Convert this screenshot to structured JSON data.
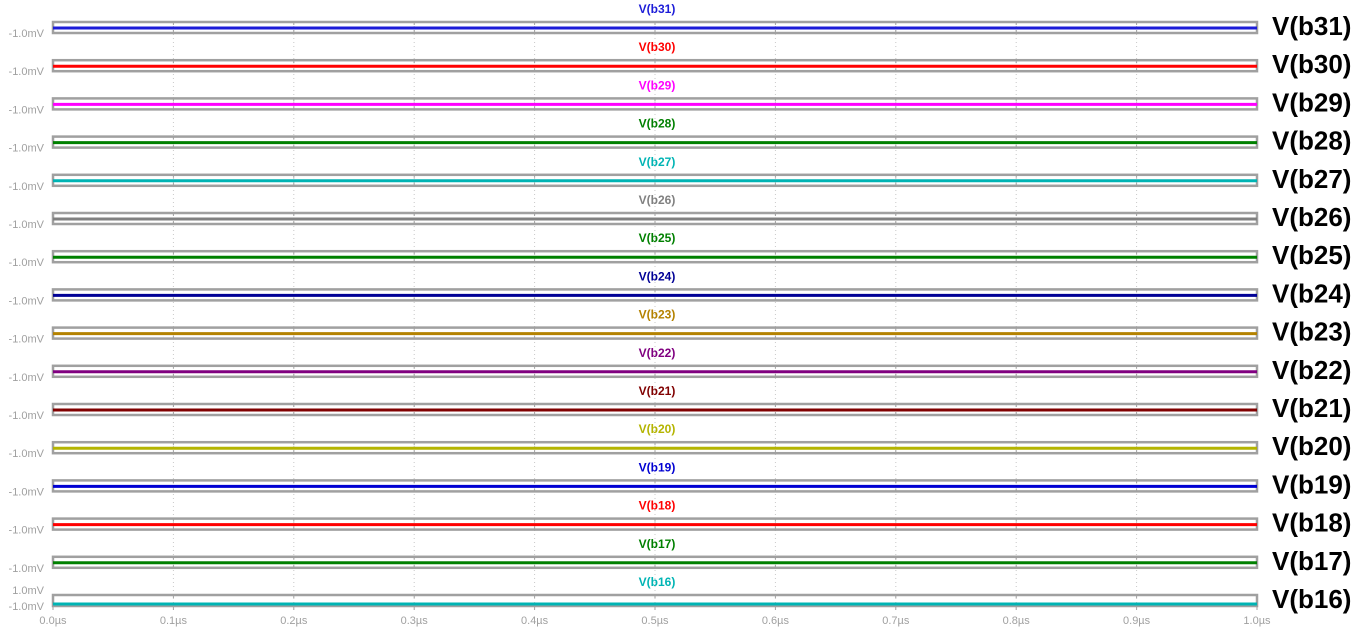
{
  "chart_data": {
    "type": "line",
    "x_unit": "µs",
    "x": [
      0.0,
      1.0
    ],
    "x_ticks": [
      0.0,
      0.1,
      0.2,
      0.3,
      0.4,
      0.5,
      0.6,
      0.7,
      0.8,
      0.9,
      1.0
    ],
    "x_tick_labels": [
      "0.0µs",
      "0.1µs",
      "0.2µs",
      "0.3µs",
      "0.4µs",
      "0.5µs",
      "0.6µs",
      "0.7µs",
      "0.8µs",
      "0.9µs",
      "1.0µs"
    ],
    "xlim": [
      0.0,
      1.0
    ],
    "grid": "vertical-dotted",
    "panels": [
      {
        "name": "V(b31)",
        "label": "V(b31)",
        "color": "#1c1cd8",
        "values_mV": [
          -1.0,
          -1.0
        ],
        "y_tick_labels": [
          "-1.0mV"
        ]
      },
      {
        "name": "V(b30)",
        "label": "V(b30)",
        "color": "#ff0000",
        "values_mV": [
          -1.0,
          -1.0
        ],
        "y_tick_labels": [
          "-1.0mV"
        ]
      },
      {
        "name": "V(b29)",
        "label": "V(b29)",
        "color": "#ff00ff",
        "values_mV": [
          -1.0,
          -1.0
        ],
        "y_tick_labels": [
          "-1.0mV"
        ]
      },
      {
        "name": "V(b28)",
        "label": "V(b28)",
        "color": "#008000",
        "values_mV": [
          -1.0,
          -1.0
        ],
        "y_tick_labels": [
          "-1.0mV"
        ]
      },
      {
        "name": "V(b27)",
        "label": "V(b27)",
        "color": "#00b4b4",
        "values_mV": [
          -1.0,
          -1.0
        ],
        "y_tick_labels": [
          "-1.0mV"
        ]
      },
      {
        "name": "V(b26)",
        "label": "V(b26)",
        "color": "#808080",
        "values_mV": [
          -1.0,
          -1.0
        ],
        "y_tick_labels": [
          "-1.0mV"
        ]
      },
      {
        "name": "V(b25)",
        "label": "V(b25)",
        "color": "#008000",
        "values_mV": [
          -1.0,
          -1.0
        ],
        "y_tick_labels": [
          "-1.0mV"
        ]
      },
      {
        "name": "V(b24)",
        "label": "V(b24)",
        "color": "#000096",
        "values_mV": [
          -1.0,
          -1.0
        ],
        "y_tick_labels": [
          "-1.0mV"
        ]
      },
      {
        "name": "V(b23)",
        "label": "V(b23)",
        "color": "#b48200",
        "values_mV": [
          -1.0,
          -1.0
        ],
        "y_tick_labels": [
          "-1.0mV"
        ]
      },
      {
        "name": "V(b22)",
        "label": "V(b22)",
        "color": "#800080",
        "values_mV": [
          -1.0,
          -1.0
        ],
        "y_tick_labels": [
          "-1.0mV"
        ]
      },
      {
        "name": "V(b21)",
        "label": "V(b21)",
        "color": "#800000",
        "values_mV": [
          -1.0,
          -1.0
        ],
        "y_tick_labels": [
          "-1.0mV"
        ]
      },
      {
        "name": "V(b20)",
        "label": "V(b20)",
        "color": "#b4b400",
        "values_mV": [
          -1.0,
          -1.0
        ],
        "y_tick_labels": [
          "-1.0mV"
        ]
      },
      {
        "name": "V(b19)",
        "label": "V(b19)",
        "color": "#0000d2",
        "values_mV": [
          -1.0,
          -1.0
        ],
        "y_tick_labels": [
          "-1.0mV"
        ]
      },
      {
        "name": "V(b18)",
        "label": "V(b18)",
        "color": "#ff0000",
        "values_mV": [
          -1.0,
          -1.0
        ],
        "y_tick_labels": [
          "-1.0mV"
        ]
      },
      {
        "name": "V(b17)",
        "label": "V(b17)",
        "color": "#008000",
        "values_mV": [
          -1.0,
          -1.0
        ],
        "y_tick_labels": [
          "-1.0mV"
        ]
      },
      {
        "name": "V(b16)",
        "label": "V(b16)",
        "color": "#00b4b4",
        "values_mV": [
          -1.0,
          -1.0
        ],
        "y_tick_labels": [
          "1.0mV",
          "-1.0mV"
        ]
      }
    ]
  }
}
